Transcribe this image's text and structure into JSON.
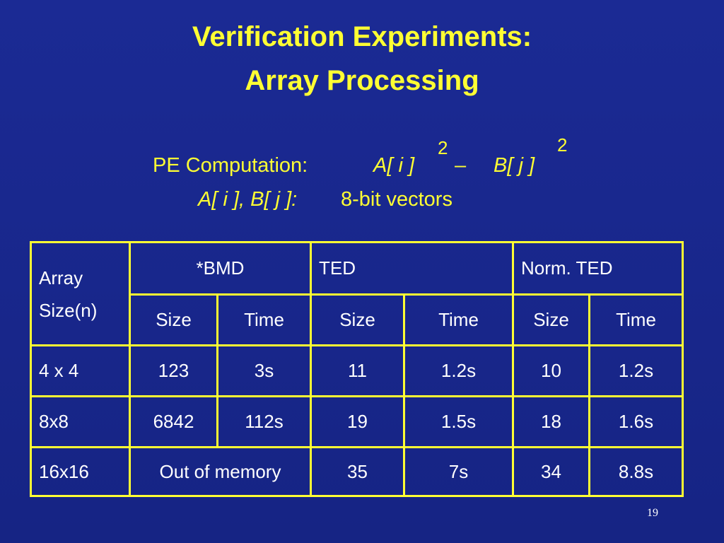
{
  "title": [
    "Verification Experiments:",
    "Array Processing"
  ],
  "formula": {
    "label": "PE Computation:",
    "a": "A[ i ]",
    "exp_a": "2",
    "minus": "–",
    "b": "B[ j ]",
    "exp_b": "2"
  },
  "note": {
    "vars": "A[ i ], B[ j ]:",
    "text": "8-bit vectors"
  },
  "table": {
    "header": {
      "row_label": [
        "Array",
        "Size(n)"
      ],
      "groups": [
        "*BMD",
        "TED",
        "Norm. TED"
      ],
      "subheaders": [
        "Size",
        "Time",
        "Size",
        "Time",
        "Size",
        "Time"
      ]
    },
    "rows": [
      [
        "4 x 4",
        "123",
        "3s",
        "11",
        "1.2s",
        "10",
        "1.2s"
      ],
      [
        "8x8",
        "6842",
        "112s",
        "19",
        "1.5s",
        "18",
        "1.6s"
      ],
      [
        "16x16",
        "Out of memory",
        "35",
        "7s",
        "34",
        "8.8s"
      ]
    ]
  },
  "page_number": "19"
}
